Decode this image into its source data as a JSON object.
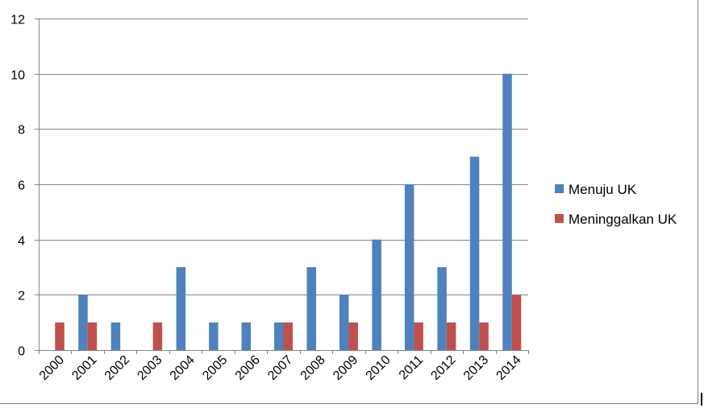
{
  "chart_data": {
    "type": "bar",
    "categories": [
      "2000",
      "2001",
      "2002",
      "2003",
      "2004",
      "2005",
      "2006",
      "2007",
      "2008",
      "2009",
      "2010",
      "2011",
      "2012",
      "2013",
      "2014"
    ],
    "series": [
      {
        "name": "Menuju UK",
        "color": "#4f81bd",
        "values": [
          0,
          2,
          1,
          0,
          3,
          1,
          1,
          1,
          3,
          2,
          4,
          6,
          3,
          7,
          10
        ]
      },
      {
        "name": "Meninggalkan UK",
        "color": "#c0504d",
        "values": [
          1,
          1,
          0,
          1,
          0,
          0,
          0,
          1,
          0,
          1,
          0,
          1,
          1,
          1,
          2
        ]
      }
    ],
    "yticks": [
      "0",
      "2",
      "4",
      "6",
      "8",
      "10",
      "12"
    ],
    "ylim": [
      0,
      12
    ],
    "grid": true,
    "legend_position": "right",
    "title": "",
    "xlabel": "",
    "ylabel": ""
  }
}
